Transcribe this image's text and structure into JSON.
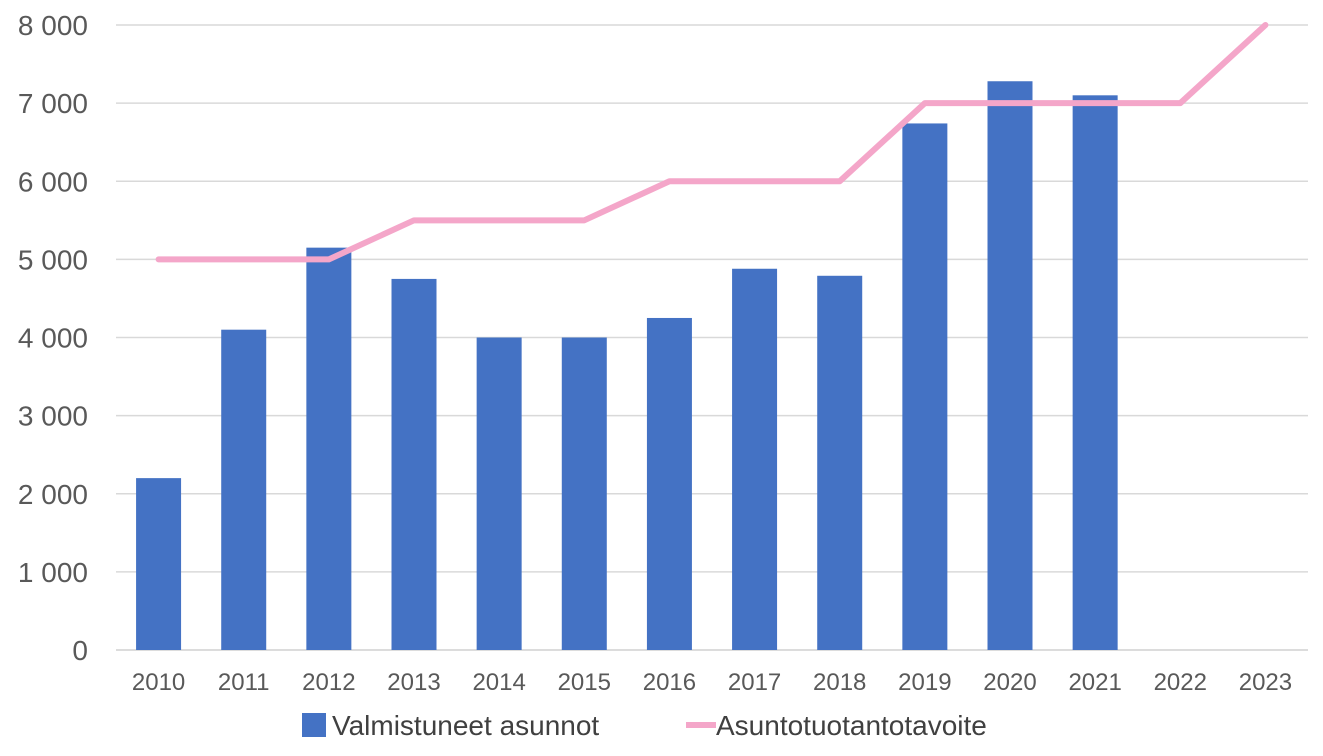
{
  "chart_data": {
    "type": "bar",
    "categories": [
      "2010",
      "2011",
      "2012",
      "2013",
      "2014",
      "2015",
      "2016",
      "2017",
      "2018",
      "2019",
      "2020",
      "2021",
      "2022",
      "2023"
    ],
    "series": [
      {
        "name": "Valmistuneet asunnot",
        "type": "bar",
        "color": "#4472C4",
        "values": [
          2200,
          4100,
          5150,
          4750,
          4000,
          4000,
          4250,
          4880,
          4790,
          6740,
          7280,
          7100,
          null,
          null
        ]
      },
      {
        "name": "Asuntotuotantotavoite",
        "type": "line",
        "color": "#F4A6C9",
        "values": [
          5000,
          5000,
          5000,
          5500,
          5500,
          5500,
          6000,
          6000,
          6000,
          7000,
          7000,
          7000,
          7000,
          8000
        ]
      }
    ],
    "yticks": [
      "0",
      "1 000",
      "2 000",
      "3 000",
      "4 000",
      "5 000",
      "6 000",
      "7 000",
      "8 000"
    ],
    "ylim": [
      0,
      8000
    ],
    "grid": true,
    "legend_position": "bottom",
    "title": "",
    "xlabel": "",
    "ylabel": ""
  }
}
